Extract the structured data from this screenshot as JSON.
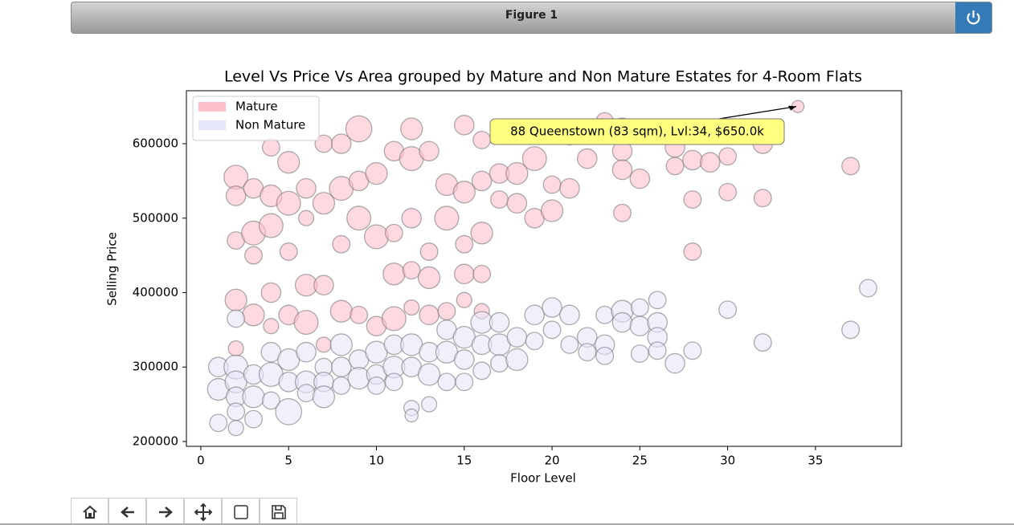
{
  "window": {
    "title": "Figure 1"
  },
  "chart_data": {
    "type": "scatter",
    "title": "Level Vs Price Vs Area grouped by Mature and Non Mature Estates for 4-Room Flats",
    "x_label": "Floor Level",
    "y_label": "Selling Price",
    "xlim": [
      -0.82,
      39.9
    ],
    "ylim": [
      193500,
      671200
    ],
    "xticks": [
      0,
      5,
      10,
      15,
      20,
      25,
      30,
      35
    ],
    "yticks": [
      200000,
      300000,
      400000,
      500000,
      600000
    ],
    "legend": "upper left",
    "annotation": {
      "text": "88 Queenstown (83 sqm), Lvl:34, $650.0k",
      "x": 34,
      "y": 650000
    },
    "series": [
      {
        "name": "Mature",
        "color": "#ffc0cb",
        "x": [
          2,
          2,
          2,
          2,
          2,
          3,
          3,
          3,
          3,
          4,
          4,
          4,
          4,
          4,
          5,
          5,
          5,
          5,
          6,
          6,
          6,
          6,
          7,
          7,
          7,
          7,
          8,
          8,
          8,
          8,
          9,
          9,
          9,
          9,
          10,
          10,
          10,
          11,
          11,
          11,
          11,
          12,
          12,
          12,
          12,
          12,
          13,
          13,
          13,
          13,
          14,
          14,
          14,
          15,
          15,
          15,
          15,
          15,
          16,
          16,
          16,
          16,
          16,
          17,
          17,
          18,
          18,
          19,
          19,
          20,
          20,
          21,
          21,
          22,
          23,
          24,
          24,
          24,
          24,
          25,
          27,
          27,
          28,
          28,
          28,
          29,
          30,
          30,
          32,
          32,
          34,
          37
        ],
        "values": [
          555000,
          530000,
          470000,
          390000,
          325000,
          540000,
          480000,
          450000,
          370000,
          595000,
          530000,
          490000,
          400000,
          355000,
          575000,
          520000,
          455000,
          370000,
          540000,
          500000,
          410000,
          360000,
          600000,
          520000,
          410000,
          330000,
          600000,
          540000,
          465000,
          375000,
          620000,
          550000,
          500000,
          370000,
          560000,
          475000,
          355000,
          590000,
          480000,
          425000,
          365000,
          620000,
          580000,
          500000,
          430000,
          380000,
          590000,
          455000,
          420000,
          370000,
          545000,
          500000,
          375000,
          625000,
          535000,
          465000,
          425000,
          390000,
          605000,
          550000,
          480000,
          425000,
          375000,
          560000,
          525000,
          560000,
          520000,
          580000,
          500000,
          545000,
          510000,
          540000,
          610000,
          580000,
          630000,
          620000,
          590000,
          565000,
          507000,
          553000,
          595000,
          570000,
          578000,
          525000,
          455000,
          575000,
          583000,
          535000,
          600000,
          527000,
          650000,
          570000
        ],
        "sizes": [
          110,
          100,
          95,
          105,
          90,
          100,
          110,
          95,
          105,
          95,
          105,
          110,
          100,
          90,
          105,
          110,
          95,
          100,
          100,
          90,
          105,
          110,
          95,
          105,
          100,
          90,
          100,
          110,
          95,
          105,
          115,
          100,
          110,
          95,
          105,
          110,
          100,
          100,
          95,
          105,
          110,
          105,
          110,
          100,
          95,
          90,
          100,
          95,
          105,
          100,
          105,
          110,
          95,
          100,
          105,
          95,
          100,
          90,
          95,
          100,
          105,
          95,
          90,
          100,
          95,
          105,
          100,
          110,
          100,
          95,
          105,
          100,
          95,
          100,
          95,
          105,
          100,
          100,
          95,
          100,
          100,
          95,
          100,
          95,
          95,
          100,
          95,
          95,
          100,
          95,
          83,
          95
        ]
      },
      {
        "name": "Non Mature",
        "color": "#e6e6fa",
        "x": [
          1,
          1,
          1,
          2,
          2,
          2,
          2,
          2,
          2,
          3,
          3,
          3,
          4,
          4,
          4,
          5,
          5,
          5,
          6,
          6,
          6,
          7,
          7,
          7,
          8,
          8,
          8,
          9,
          9,
          10,
          10,
          10,
          11,
          11,
          11,
          12,
          12,
          12,
          12,
          13,
          13,
          13,
          14,
          14,
          14,
          15,
          15,
          15,
          16,
          16,
          16,
          17,
          17,
          17,
          18,
          18,
          19,
          19,
          20,
          20,
          21,
          21,
          22,
          22,
          23,
          23,
          23,
          24,
          24,
          25,
          25,
          25,
          26,
          26,
          26,
          26,
          27,
          28,
          30,
          32,
          37,
          38
        ],
        "values": [
          300000,
          270000,
          225000,
          300000,
          280000,
          260000,
          240000,
          218000,
          365000,
          290000,
          260000,
          230000,
          320000,
          290000,
          255000,
          310000,
          280000,
          240000,
          320000,
          280000,
          265000,
          300000,
          280000,
          260000,
          330000,
          300000,
          275000,
          310000,
          285000,
          320000,
          290000,
          275000,
          330000,
          300000,
          280000,
          330000,
          300000,
          245000,
          235000,
          320000,
          290000,
          250000,
          350000,
          320000,
          280000,
          340000,
          310000,
          280000,
          360000,
          330000,
          295000,
          360000,
          330000,
          305000,
          340000,
          310000,
          370000,
          335000,
          380000,
          350000,
          370000,
          330000,
          340000,
          320000,
          370000,
          330000,
          315000,
          375000,
          360000,
          380000,
          355000,
          318000,
          390000,
          360000,
          340000,
          322000,
          305000,
          322000,
          377000,
          333000,
          350000,
          406000
        ],
        "sizes": [
          100,
          105,
          95,
          110,
          105,
          100,
          95,
          90,
          95,
          100,
          105,
          95,
          100,
          110,
          95,
          105,
          100,
          115,
          100,
          105,
          95,
          95,
          100,
          105,
          105,
          100,
          95,
          100,
          105,
          105,
          100,
          95,
          100,
          105,
          95,
          105,
          100,
          90,
          85,
          100,
          105,
          90,
          100,
          105,
          95,
          105,
          100,
          95,
          105,
          100,
          95,
          100,
          105,
          95,
          100,
          105,
          100,
          95,
          100,
          95,
          100,
          95,
          100,
          95,
          95,
          100,
          95,
          105,
          100,
          95,
          100,
          95,
          95,
          100,
          100,
          95,
          100,
          95,
          95,
          95,
          95,
          95
        ]
      }
    ]
  }
}
